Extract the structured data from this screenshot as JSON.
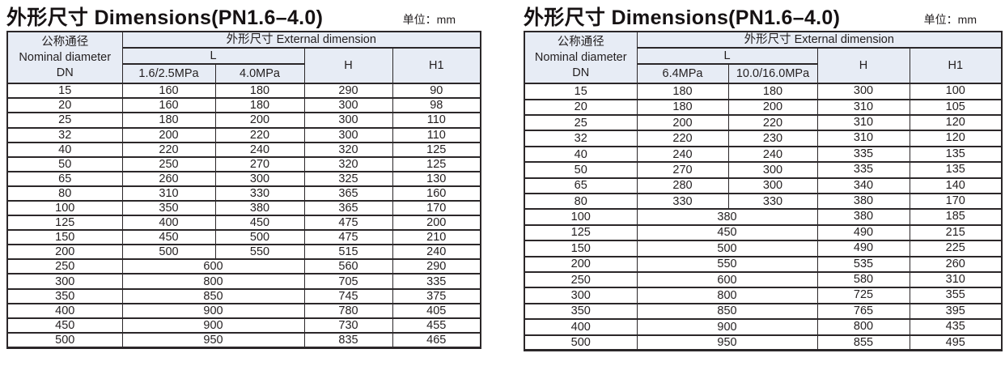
{
  "colors": {
    "header_bg": "#e7ecf5",
    "border": "#2b2729",
    "text": "#231f20"
  },
  "tables": [
    {
      "id": "pn16-40",
      "title": "外形尺寸 Dimensions(PN1.6–4.0)",
      "unit": "单位：mm",
      "header": {
        "dn_lines": [
          "公称通径",
          "Nominal diameter",
          "DN"
        ],
        "group": "外形尺寸 External dimension",
        "l": "L",
        "pressure_cols": [
          "1.6/2.5MPa",
          "4.0MPa"
        ],
        "h": "H",
        "h1": "H1"
      },
      "rows": [
        {
          "dn": "15",
          "l": [
            "160",
            "180"
          ],
          "h": "290",
          "h1": "90"
        },
        {
          "dn": "20",
          "l": [
            "160",
            "180"
          ],
          "h": "300",
          "h1": "98"
        },
        {
          "dn": "25",
          "l": [
            "180",
            "200"
          ],
          "h": "300",
          "h1": "110"
        },
        {
          "dn": "32",
          "l": [
            "200",
            "220"
          ],
          "h": "300",
          "h1": "110"
        },
        {
          "dn": "40",
          "l": [
            "220",
            "240"
          ],
          "h": "320",
          "h1": "125"
        },
        {
          "dn": "50",
          "l": [
            "250",
            "270"
          ],
          "h": "320",
          "h1": "125"
        },
        {
          "dn": "65",
          "l": [
            "260",
            "300"
          ],
          "h": "325",
          "h1": "130"
        },
        {
          "dn": "80",
          "l": [
            "310",
            "330"
          ],
          "h": "365",
          "h1": "160"
        },
        {
          "dn": "100",
          "l": [
            "350",
            "380"
          ],
          "h": "365",
          "h1": "170"
        },
        {
          "dn": "125",
          "l": [
            "400",
            "450"
          ],
          "h": "475",
          "h1": "200"
        },
        {
          "dn": "150",
          "l": [
            "450",
            "500"
          ],
          "h": "475",
          "h1": "210"
        },
        {
          "dn": "200",
          "l": [
            "500",
            "550"
          ],
          "h": "515",
          "h1": "240"
        },
        {
          "dn": "250",
          "l": [
            "600"
          ],
          "h": "560",
          "h1": "290"
        },
        {
          "dn": "300",
          "l": [
            "800"
          ],
          "h": "705",
          "h1": "335"
        },
        {
          "dn": "350",
          "l": [
            "850"
          ],
          "h": "745",
          "h1": "375"
        },
        {
          "dn": "400",
          "l": [
            "900"
          ],
          "h": "780",
          "h1": "405"
        },
        {
          "dn": "450",
          "l": [
            "900"
          ],
          "h": "730",
          "h1": "455"
        },
        {
          "dn": "500",
          "l": [
            "950"
          ],
          "h": "835",
          "h1": "465"
        }
      ]
    },
    {
      "id": "pn64-160",
      "title": "外形尺寸 Dimensions(PN1.6–4.0)",
      "unit": "单位：mm",
      "header": {
        "dn_lines": [
          "公称通径",
          "Nominal diameter",
          "DN"
        ],
        "group": "外形尺寸 External dimension",
        "l": "L",
        "pressure_cols": [
          "6.4MPa",
          "10.0/16.0MPa"
        ],
        "h": "H",
        "h1": "H1"
      },
      "rows": [
        {
          "dn": "15",
          "l": [
            "180",
            "180"
          ],
          "h": "300",
          "h1": "100"
        },
        {
          "dn": "20",
          "l": [
            "180",
            "200"
          ],
          "h": "310",
          "h1": "105"
        },
        {
          "dn": "25",
          "l": [
            "200",
            "220"
          ],
          "h": "310",
          "h1": "120"
        },
        {
          "dn": "32",
          "l": [
            "220",
            "230"
          ],
          "h": "310",
          "h1": "120"
        },
        {
          "dn": "40",
          "l": [
            "240",
            "240"
          ],
          "h": "335",
          "h1": "135"
        },
        {
          "dn": "50",
          "l": [
            "270",
            "300"
          ],
          "h": "335",
          "h1": "135"
        },
        {
          "dn": "65",
          "l": [
            "280",
            "300"
          ],
          "h": "340",
          "h1": "140"
        },
        {
          "dn": "80",
          "l": [
            "330",
            "330"
          ],
          "h": "380",
          "h1": "170"
        },
        {
          "dn": "100",
          "l": [
            "380"
          ],
          "h": "380",
          "h1": "185"
        },
        {
          "dn": "125",
          "l": [
            "450"
          ],
          "h": "490",
          "h1": "215"
        },
        {
          "dn": "150",
          "l": [
            "500"
          ],
          "h": "490",
          "h1": "225"
        },
        {
          "dn": "200",
          "l": [
            "550"
          ],
          "h": "535",
          "h1": "260"
        },
        {
          "dn": "250",
          "l": [
            "600"
          ],
          "h": "580",
          "h1": "310"
        },
        {
          "dn": "300",
          "l": [
            "800"
          ],
          "h": "725",
          "h1": "355"
        },
        {
          "dn": "350",
          "l": [
            "850"
          ],
          "h": "765",
          "h1": "395"
        },
        {
          "dn": "400",
          "l": [
            "900"
          ],
          "h": "800",
          "h1": "435"
        },
        {
          "dn": "500",
          "l": [
            "950"
          ],
          "h": "855",
          "h1": "495"
        }
      ]
    }
  ]
}
